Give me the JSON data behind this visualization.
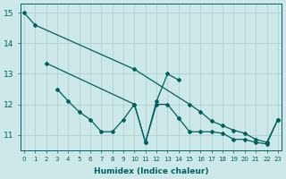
{
  "xlabel": "Humidex (Indice chaleur)",
  "bg_color": "#cce8e8",
  "line_color": "#006060",
  "grid_color": "#aacccc",
  "ylim": [
    10.5,
    15.3
  ],
  "xlim": [
    -0.3,
    23.3
  ],
  "line1_x": [
    0,
    1,
    10,
    15,
    16,
    17,
    18,
    19,
    20,
    21,
    22,
    23
  ],
  "line1_y": [
    15.0,
    14.6,
    13.15,
    12.0,
    11.75,
    11.45,
    11.3,
    11.15,
    11.05,
    10.85,
    10.75,
    11.5
  ],
  "line2_x": [
    2,
    10,
    11,
    12,
    13,
    14
  ],
  "line2_y": [
    13.35,
    12.0,
    10.75,
    12.1,
    13.0,
    12.8
  ],
  "line3_x": [
    3,
    4,
    5,
    6,
    7,
    8,
    9,
    10,
    11,
    12,
    13,
    14,
    15,
    16,
    17,
    18,
    19,
    20,
    21,
    22,
    23
  ],
  "line3_y": [
    12.5,
    12.1,
    11.75,
    11.5,
    11.1,
    11.1,
    11.5,
    12.0,
    10.75,
    12.0,
    12.0,
    11.55,
    11.1,
    11.1,
    11.1,
    11.05,
    10.85,
    10.85,
    10.75,
    10.7,
    11.5
  ]
}
